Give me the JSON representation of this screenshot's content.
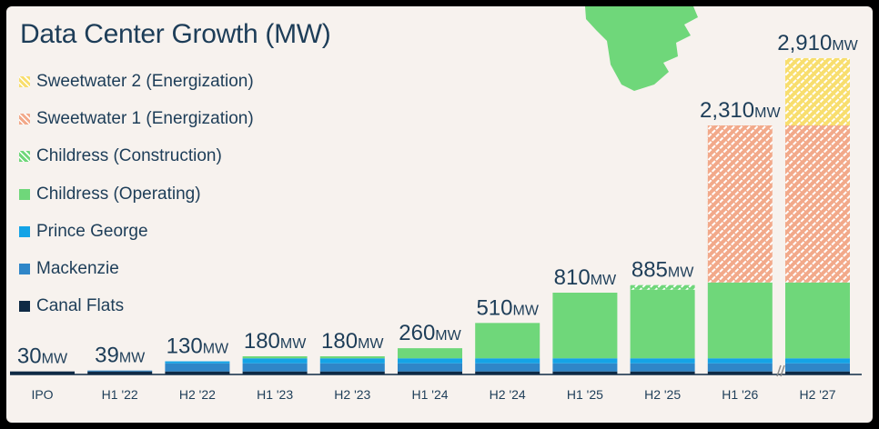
{
  "chart_data": {
    "type": "bar",
    "stacked": true,
    "title": "Data Center Growth (MW)",
    "categories": [
      "IPO",
      "H1 '22",
      "H2 '22",
      "H1 '23",
      "H2 '23",
      "H1 '24",
      "H2 '24",
      "H1 '25",
      "H2 '25",
      "H1 '26",
      "H2 '27"
    ],
    "totals": [
      "30",
      "39",
      "130",
      "180",
      "180",
      "260",
      "510",
      "810",
      "885",
      "2,310",
      "2,910"
    ],
    "total_unit": "MW",
    "total_values": [
      30,
      39,
      130,
      180,
      180,
      260,
      510,
      810,
      885,
      2310,
      2910
    ],
    "axis_break": true,
    "legend_position": "top-left",
    "series": [
      {
        "name": "Canal Flats",
        "color": "#0f2a45",
        "pattern": "solid",
        "values": [
          30,
          30,
          30,
          30,
          30,
          30,
          30,
          30,
          30,
          30,
          30
        ]
      },
      {
        "name": "Mackenzie",
        "color": "#2f86c8",
        "pattern": "solid",
        "values": [
          0,
          9,
          80,
          80,
          80,
          80,
          80,
          80,
          80,
          80,
          80
        ]
      },
      {
        "name": "Prince George",
        "color": "#14a3e6",
        "pattern": "solid",
        "values": [
          0,
          0,
          20,
          50,
          50,
          50,
          50,
          50,
          50,
          50,
          50
        ]
      },
      {
        "name": "Childress (Operating)",
        "color": "#6fd77a",
        "pattern": "solid",
        "values": [
          0,
          0,
          0,
          20,
          20,
          100,
          350,
          650,
          680,
          750,
          750
        ]
      },
      {
        "name": "Childress (Construction)",
        "color": "#6fd77a",
        "pattern": "hatch",
        "values": [
          0,
          0,
          0,
          0,
          0,
          0,
          0,
          0,
          45,
          0,
          0
        ]
      },
      {
        "name": "Sweetwater 1 (Energization)",
        "color": "#f2a98a",
        "pattern": "hatch",
        "values": [
          0,
          0,
          0,
          0,
          0,
          0,
          0,
          0,
          0,
          1400,
          1400
        ]
      },
      {
        "name": "Sweetwater 2 (Energization)",
        "color": "#f8de6e",
        "pattern": "hatch",
        "values": [
          0,
          0,
          0,
          0,
          0,
          0,
          0,
          0,
          0,
          0,
          600
        ]
      }
    ]
  },
  "decor": {
    "map_icon": "texas-map-shape",
    "map_color": "#6fd77a",
    "text_color": "#1d3d58",
    "background": "#f7f2ee"
  }
}
